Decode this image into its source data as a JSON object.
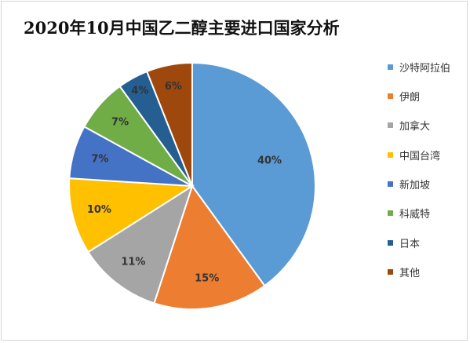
{
  "title": "2020年10月中国乙二醇主要进口国家分析",
  "chart_data": {
    "type": "pie",
    "title": "2020年10月中国乙二醇主要进口国家分析",
    "legend_position": "right",
    "slices": [
      {
        "label": "沙特阿拉伯",
        "value": 40,
        "value_label": "40%",
        "color": "#5b9bd5"
      },
      {
        "label": "伊朗",
        "value": 15,
        "value_label": "15%",
        "color": "#ed7d31"
      },
      {
        "label": "加拿大",
        "value": 11,
        "value_label": "11%",
        "color": "#a5a5a5"
      },
      {
        "label": "中国台湾",
        "value": 10,
        "value_label": "10%",
        "color": "#ffc000"
      },
      {
        "label": "新加坡",
        "value": 7,
        "value_label": "7%",
        "color": "#4472c4"
      },
      {
        "label": "科威特",
        "value": 7,
        "value_label": "7%",
        "color": "#70ad47"
      },
      {
        "label": "日本",
        "value": 4,
        "value_label": "4%",
        "color": "#255e91"
      },
      {
        "label": "其他",
        "value": 6,
        "value_label": "6%",
        "color": "#9e480e"
      }
    ]
  }
}
